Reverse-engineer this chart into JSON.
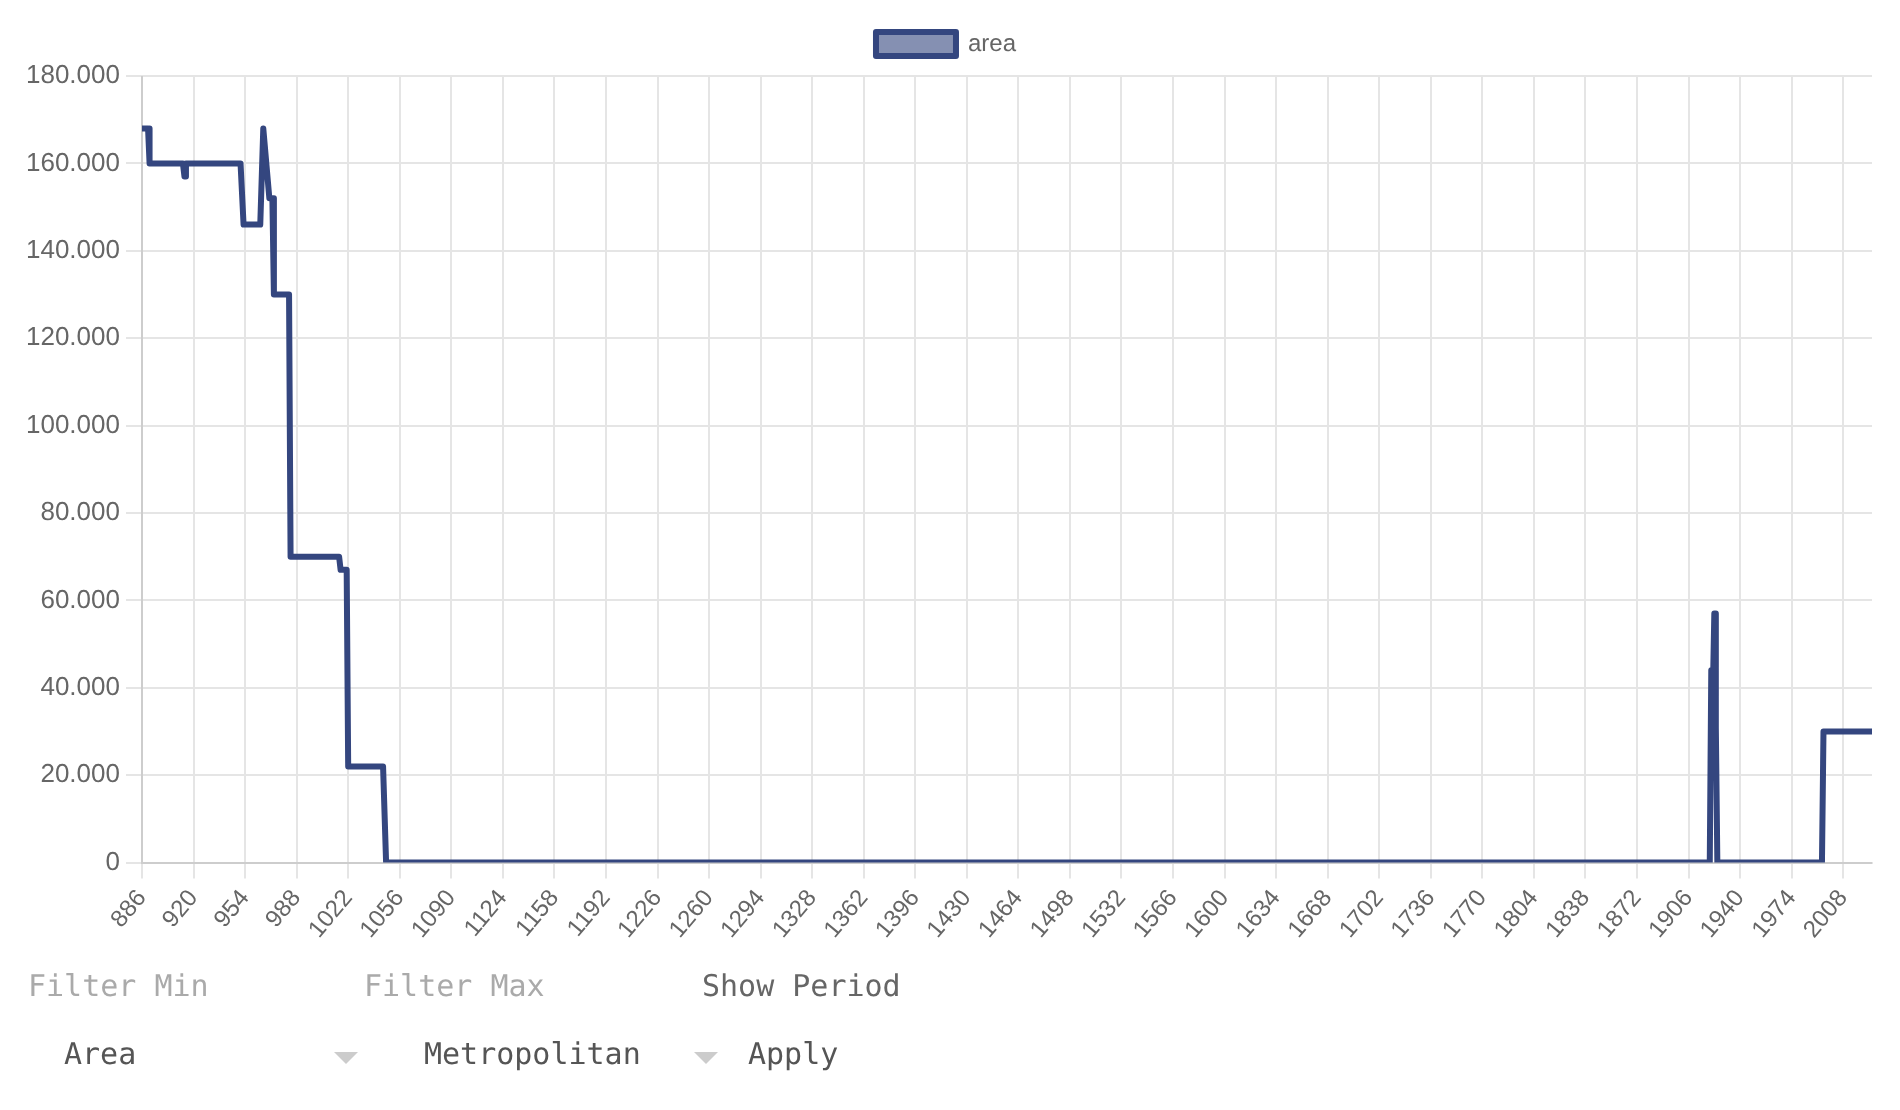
{
  "chart_data": {
    "type": "line",
    "x": [
      886,
      890,
      891,
      913,
      914,
      915,
      951,
      953,
      964,
      966,
      970,
      972,
      973,
      983,
      984,
      1016,
      1017,
      1021,
      1022,
      1045,
      1047,
      1920,
      1921,
      1922,
      1923,
      1924,
      1925,
      1994,
      1995,
      2027
    ],
    "series": [
      {
        "name": "area",
        "color": "#34467f",
        "values": [
          168000,
          168000,
          160000,
          160000,
          157000,
          160000,
          160000,
          146000,
          146000,
          168000,
          152000,
          152000,
          130000,
          130000,
          70000,
          70000,
          67000,
          67000,
          22000,
          22000,
          0,
          0,
          44000,
          38000,
          57000,
          31000,
          0,
          0,
          30000,
          30000
        ]
      }
    ],
    "xlim": [
      886,
      2027
    ],
    "xticks": [
      886,
      920,
      954,
      988,
      1022,
      1056,
      1090,
      1124,
      1158,
      1192,
      1226,
      1260,
      1294,
      1328,
      1362,
      1396,
      1430,
      1464,
      1498,
      1532,
      1566,
      1600,
      1634,
      1668,
      1702,
      1736,
      1770,
      1804,
      1838,
      1872,
      1906,
      1940,
      1974,
      2008
    ],
    "ylim": [
      0,
      180000
    ],
    "yticks": [
      0,
      {
        "value": 20000,
        "label": "20.000"
      },
      {
        "value": 40000,
        "label": "40.000"
      },
      {
        "value": 60000,
        "label": "60.000"
      },
      {
        "value": 80000,
        "label": "80.000"
      },
      {
        "value": 100000,
        "label": "100.000"
      },
      {
        "value": 120000,
        "label": "120.000"
      },
      {
        "value": 140000,
        "label": "140.000"
      },
      {
        "value": 160000,
        "label": "160.000"
      },
      {
        "value": 180000,
        "label": "180.000"
      }
    ],
    "grid": true,
    "legend": "top",
    "annotations": [
      "Filter Min",
      "Filter Max",
      "Show Period",
      "Area",
      "Metropolitan",
      "Apply"
    ]
  }
}
